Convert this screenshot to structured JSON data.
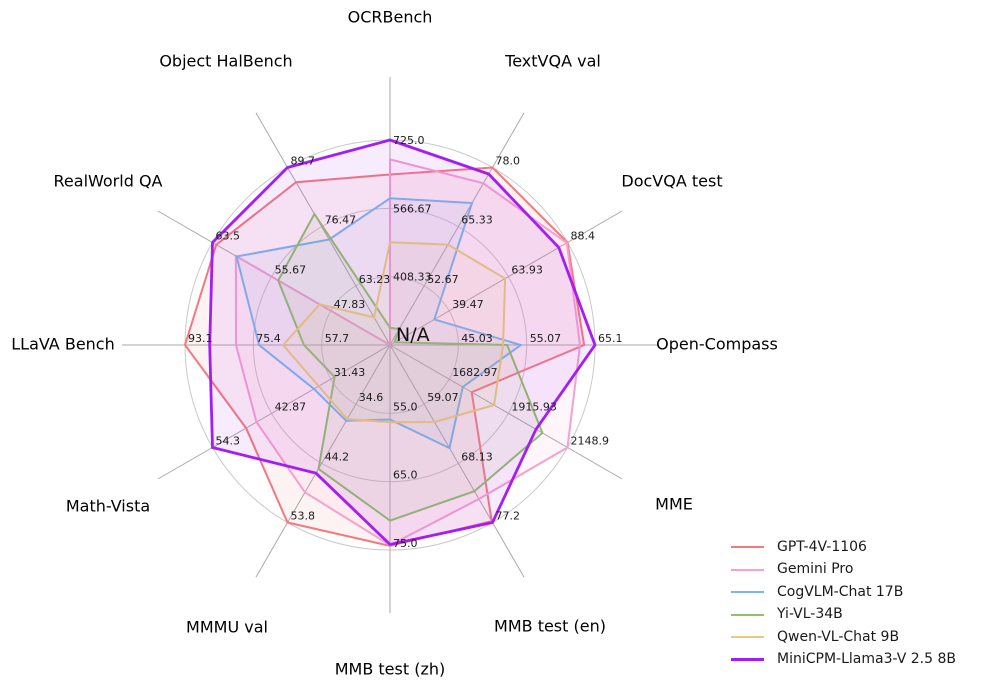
{
  "chart_data": {
    "type": "radar",
    "center_label": "N/A",
    "grid": true,
    "legend_position": "lower right",
    "axes": [
      {
        "label": "OCRBench",
        "min": 250,
        "max": 725,
        "tick_labels": [
          "408.33",
          "566.67",
          "725.0"
        ]
      },
      {
        "label": "TextVQA val",
        "min": 40,
        "max": 78,
        "tick_labels": [
          "52.67",
          "65.33",
          "78.0"
        ]
      },
      {
        "label": "DocVQA test",
        "min": 15,
        "max": 88.4,
        "tick_labels": [
          "39.47",
          "63.93",
          "88.4"
        ]
      },
      {
        "label": "Open-Compass",
        "min": 35,
        "max": 65.1,
        "tick_labels": [
          "45.03",
          "55.07",
          "65.1"
        ]
      },
      {
        "label": "MME",
        "min": 1450,
        "max": 2148.9,
        "tick_labels": [
          "1682.97",
          "1915.93",
          "2148.9"
        ]
      },
      {
        "label": "MMB test (en)",
        "min": 50,
        "max": 77.2,
        "tick_labels": [
          "59.07",
          "68.13",
          "77.2"
        ]
      },
      {
        "label": "MMB test (zh)",
        "min": 45,
        "max": 75,
        "tick_labels": [
          "55.0",
          "65.0",
          "75.0"
        ]
      },
      {
        "label": "MMMU val",
        "min": 25,
        "max": 53.8,
        "tick_labels": [
          "34.6",
          "44.2",
          "53.8"
        ]
      },
      {
        "label": "Math-Vista",
        "min": 20,
        "max": 54.3,
        "tick_labels": [
          "31.43",
          "42.87",
          "54.3"
        ]
      },
      {
        "label": "LLaVA Bench",
        "min": 40,
        "max": 93.1,
        "tick_labels": [
          "57.7",
          "75.4",
          "93.1"
        ]
      },
      {
        "label": "RealWorld QA",
        "min": 40,
        "max": 63.5,
        "tick_labels": [
          "47.83",
          "55.67",
          "63.5"
        ]
      },
      {
        "label": "Object HalBench",
        "min": 50,
        "max": 89.7,
        "tick_labels": [
          "63.23",
          "76.47",
          "89.7"
        ]
      }
    ],
    "series": [
      {
        "name": "GPT-4V-1106",
        "color": "#f4797d",
        "values": [
          645,
          78.0,
          88.4,
          63.5,
          1771.5,
          77.0,
          74.4,
          53.8,
          47.8,
          93.1,
          63.0,
          86.4
        ]
      },
      {
        "name": "Gemini Pro",
        "color": "#f89fce",
        "values": [
          680,
          74.6,
          88.1,
          62.9,
          2148.9,
          73.6,
          74.3,
          48.9,
          45.8,
          79.9,
          60.4,
          null
        ]
      },
      {
        "name": "CogVLM-Chat 17B",
        "color": "#7fb6ea",
        "values": [
          590,
          70.4,
          33.3,
          54.2,
          1736.6,
          65.8,
          55.9,
          37.3,
          34.7,
          73.9,
          60.3,
          73.6
        ]
      },
      {
        "name": "Yi-VL-34B",
        "color": "#93bf6d",
        "values": [
          290,
          43.4,
          16.9,
          52.2,
          2050.2,
          72.4,
          70.7,
          45.1,
          30.7,
          62.3,
          54.8,
          79.3
        ]
      },
      {
        "name": "Qwen-VL-Chat 9B",
        "color": "#e8c97d",
        "values": [
          488,
          61.5,
          62.6,
          51.6,
          1860.0,
          61.8,
          56.3,
          37.0,
          33.8,
          67.7,
          49.3,
          56.2
        ]
      },
      {
        "name": "MiniCPM-Llama3-V 2.5 8B",
        "color": "#a41df2",
        "values": [
          725,
          76.6,
          84.8,
          65.1,
          2024.6,
          77.2,
          74.2,
          45.8,
          54.3,
          86.7,
          63.5,
          89.7
        ]
      }
    ]
  }
}
